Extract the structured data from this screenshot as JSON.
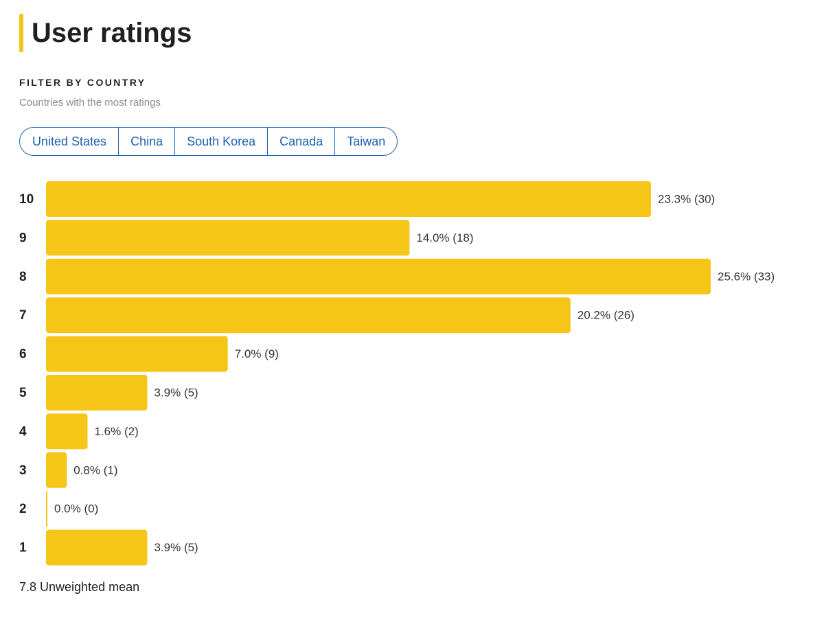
{
  "header": {
    "title": "User ratings"
  },
  "filter": {
    "label": "FILTER BY COUNTRY",
    "subtitle": "Countries with the most ratings",
    "countries": [
      "United States",
      "China",
      "South Korea",
      "Canada",
      "Taiwan"
    ]
  },
  "chart_data": {
    "type": "bar",
    "orientation": "horizontal",
    "color": "#f5c518",
    "categories": [
      "10",
      "9",
      "8",
      "7",
      "6",
      "5",
      "4",
      "3",
      "2",
      "1"
    ],
    "values": [
      23.3,
      14.0,
      25.6,
      20.2,
      7.0,
      3.9,
      1.6,
      0.8,
      0.0,
      3.9
    ],
    "value_labels": [
      "23.3% (30)",
      "14.0% (18)",
      "25.6% (33)",
      "20.2% (26)",
      "7.0% (9)",
      "3.9% (5)",
      "1.6% (2)",
      "0.8% (1)",
      "0.0% (0)",
      "3.9% (5)"
    ]
  },
  "footer": {
    "mean": "7.8 Unweighted mean"
  }
}
